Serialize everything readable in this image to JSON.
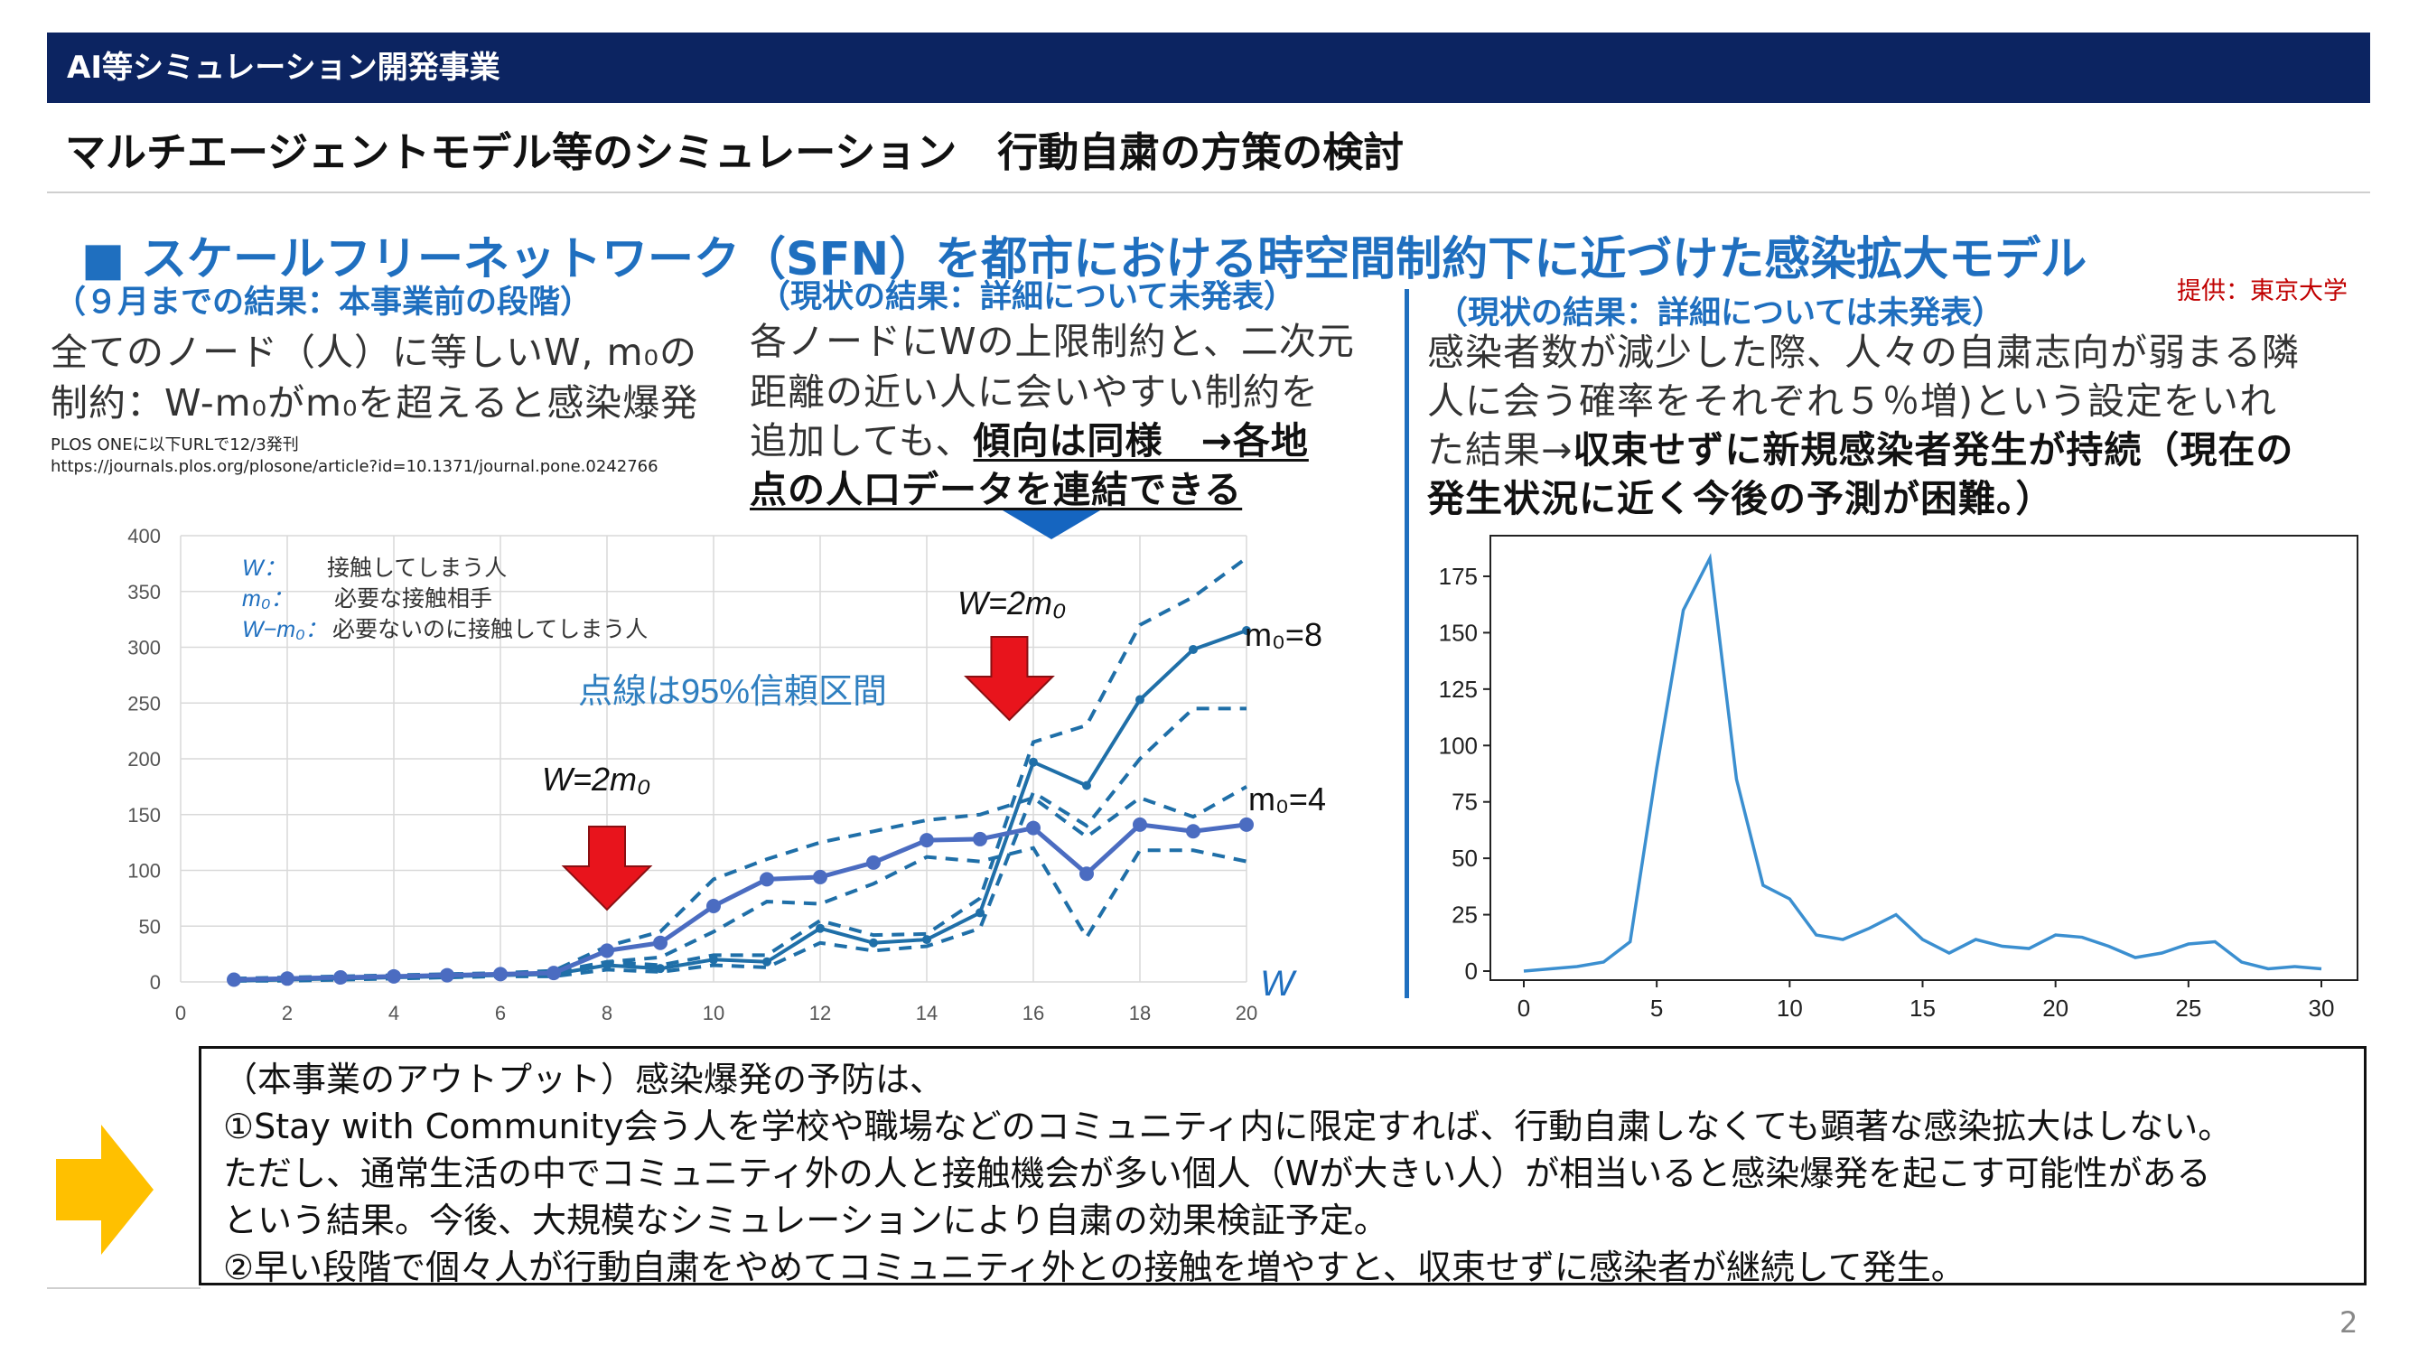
{
  "header": {
    "section": "AI等シミュレーション開発事業"
  },
  "subtitle": "マルチエージェントモデル等のシミュレーション　行動自粛の方策の検討",
  "sfn_title": "■ スケールフリーネットワーク（SFN）を都市における時空間制約下に近づけた感染拡大モデル",
  "credit": "提供：東京大学",
  "col1": {
    "heading": "（９月までの結果：本事業前の段階）",
    "line1": "全てのノード（人）に等しいW, m₀の",
    "line2": "制約：W-m₀がm₀を超えると感染爆発",
    "ref1": "PLOS ONEに以下URLで12/3発刊",
    "ref2": "https://journals.plos.org/plosone/article?id=10.1371/journal.pone.0242766"
  },
  "col2": {
    "heading": "（現状の結果：詳細について未発表）",
    "line1": "各ノードにWの上限制約と、二次元",
    "line2": "距離の近い人に会いやすい制約を",
    "line3_plain": "追加しても、",
    "line3_bold": "傾向は同様　→各地",
    "line4_bold": "点の人口データを連結できる"
  },
  "col3": {
    "heading": "（現状の結果：詳細については未発表）",
    "line1": "感染者数が減少した際、人々の自粛志向が弱まる隣",
    "line2": "人に会う確率をそれぞれ５％増)という設定をいれ",
    "line3_plain": "た結果→",
    "line3_bold": "収束せずに新規感染者発生が持続（現在の",
    "line4_bold": "発生状況に近く今後の予測が困難。）"
  },
  "left_chart_text": {
    "legend_w_sym": "W：",
    "legend_w": "接触してしまう人",
    "legend_m0_sym": "m₀：",
    "legend_m0": "必要な接触相手",
    "legend_wm_sym": "W−m₀：",
    "legend_wm": "必要ないのに接触してしまう人",
    "ci_note": "点線は95%信頼区間",
    "arrow1_label": "W=2m₀",
    "arrow2_label": "W=2m₀",
    "series_m8": "m₀=8",
    "series_m4": "m₀=4",
    "x_axis_label": "W"
  },
  "chart_data": [
    {
      "type": "line",
      "x": [
        1,
        2,
        3,
        4,
        5,
        6,
        7,
        8,
        9,
        10,
        11,
        12,
        13,
        14,
        15,
        16,
        17,
        18,
        19,
        20
      ],
      "series": [
        {
          "name": "m₀=8",
          "values": [
            1,
            2,
            3,
            4,
            5,
            6,
            7,
            15,
            12,
            20,
            18,
            48,
            35,
            38,
            62,
            197,
            176,
            253,
            298,
            315
          ]
        },
        {
          "name": "m₀=4",
          "values": [
            2,
            3,
            4,
            5,
            6,
            7,
            8,
            28,
            35,
            68,
            92,
            94,
            107,
            127,
            128,
            138,
            97,
            141,
            135,
            141
          ]
        }
      ],
      "confidence_bands": [
        {
          "upper": [
            2,
            3,
            4,
            5,
            6,
            8,
            9,
            18,
            15,
            24,
            24,
            55,
            42,
            43,
            75,
            215,
            230,
            320,
            345,
            380
          ],
          "lower": [
            1,
            1,
            2,
            3,
            4,
            5,
            5,
            11,
            9,
            15,
            13,
            35,
            28,
            32,
            48,
            170,
            140,
            200,
            245,
            245
          ]
        },
        {
          "upper": [
            3,
            4,
            5,
            6,
            7,
            8,
            10,
            32,
            45,
            92,
            110,
            125,
            135,
            145,
            150,
            165,
            130,
            165,
            148,
            175
          ],
          "lower": [
            1,
            2,
            3,
            4,
            5,
            6,
            7,
            18,
            22,
            45,
            72,
            70,
            88,
            112,
            108,
            120,
            40,
            118,
            118,
            108
          ]
        }
      ],
      "xlim": [
        0,
        20
      ],
      "ylim": [
        0,
        400
      ],
      "xticks": [
        0,
        2,
        4,
        6,
        8,
        10,
        12,
        14,
        16,
        18,
        20
      ],
      "yticks": [
        0,
        50,
        100,
        150,
        200,
        250,
        300,
        350,
        400
      ],
      "annotations": [
        "W=2m₀ at x=8",
        "W=2m₀ at x=16"
      ],
      "colors": {
        "m8": "#1f6fa8",
        "m4": "#4b6cc1"
      },
      "grid": true
    },
    {
      "type": "line",
      "x": [
        0,
        1,
        2,
        3,
        4,
        5,
        6,
        7,
        8,
        9,
        10,
        11,
        12,
        13,
        14,
        15,
        16,
        17,
        18,
        19,
        20,
        21,
        22,
        23,
        24,
        25,
        26,
        27,
        28,
        29,
        30
      ],
      "series": [
        {
          "values": [
            0,
            1,
            2,
            4,
            13,
            90,
            160,
            183,
            85,
            38,
            32,
            16,
            14,
            19,
            25,
            14,
            8,
            14,
            11,
            10,
            16,
            15,
            11,
            6,
            8,
            12,
            13,
            4,
            1,
            2,
            1
          ]
        }
      ],
      "xlim": [
        0,
        30
      ],
      "ylim": [
        0,
        185
      ],
      "xticks": [
        0,
        5,
        10,
        15,
        20,
        25,
        30
      ],
      "yticks": [
        0,
        25,
        50,
        75,
        100,
        125,
        150,
        175
      ],
      "colors": {
        "line": "#3b8fd0"
      },
      "grid": false
    }
  ],
  "outcome": {
    "line1": "（本事業のアウトプット）感染爆発の予防は、",
    "line2": "①Stay with Community会う人を学校や職場などのコミュニティ内に限定すれば、行動自粛しなくても顕著な感染拡大はしない。",
    "line3": "ただし、通常生活の中でコミュニティ外の人と接触機会が多い個人（Wが大きい人）が相当いると感染爆発を起こす可能性がある",
    "line4": "という結果。今後、大規模なシミュレーションにより自粛の効果検証予定。",
    "line5": "②早い段階で個々人が行動自粛をやめてコミュニティ外との接触を増やすと、収束せずに感染者が継続して発生。"
  },
  "page_number": "2",
  "colors": {
    "header_bg": "#0c2461",
    "accent_blue": "#1f6fbf",
    "arrow_red": "#e8141c",
    "arrow_yellow": "#ffc000",
    "credit_red": "#c00000"
  }
}
